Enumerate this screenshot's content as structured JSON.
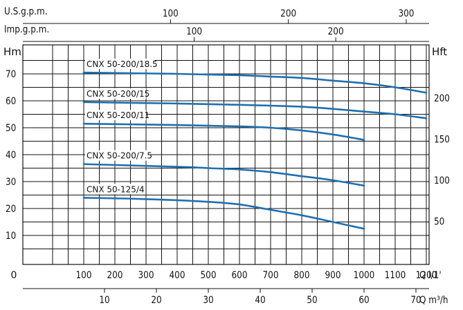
{
  "chart_data": {
    "type": "line",
    "title": "",
    "top_axes": [
      {
        "unit": "U.S.g.p.m.",
        "ticks": [
          100,
          200,
          300
        ],
        "gal_per_unit": 3.785
      },
      {
        "unit": "Imp.g.p.m.",
        "ticks": [
          100,
          200
        ],
        "gal_per_unit": 4.546
      }
    ],
    "x_axis": {
      "unit": "Q l/1'",
      "origin_label": "0",
      "ticks": [
        100,
        200,
        300,
        400,
        500,
        600,
        700,
        800,
        900,
        1000,
        1100,
        1200
      ],
      "xlim": [
        0,
        1250
      ]
    },
    "x2_axis": {
      "unit": "Q m³/h",
      "ticks": [
        10,
        20,
        30,
        40,
        50,
        60,
        70
      ]
    },
    "y_axis": {
      "unit": "Hm",
      "ticks": [
        10,
        20,
        30,
        40,
        50,
        60,
        70
      ],
      "ylim": [
        0,
        75
      ]
    },
    "y2_axis": {
      "unit": "Hft",
      "ticks": [
        50,
        100,
        150,
        200
      ]
    },
    "grid": true,
    "series": [
      {
        "name": "CNX 50-200/18.5",
        "x": [
          100,
          400,
          600,
          700,
          800,
          900,
          1000,
          1100,
          1200
        ],
        "y": [
          70.5,
          70.0,
          69.5,
          69.0,
          68.5,
          67.5,
          66.5,
          65.0,
          63.0
        ]
      },
      {
        "name": "CNX 50-200/15",
        "x": [
          100,
          400,
          600,
          700,
          800,
          900,
          1000,
          1100,
          1200
        ],
        "y": [
          59.5,
          59.0,
          58.5,
          58.2,
          57.8,
          57.0,
          56.0,
          55.0,
          53.5
        ]
      },
      {
        "name": "CNX 50-200/11",
        "x": [
          100,
          400,
          600,
          700,
          800,
          900,
          1000
        ],
        "y": [
          51.5,
          51.0,
          50.5,
          50.0,
          49.0,
          47.5,
          45.5
        ]
      },
      {
        "name": "CNX 50-200/7.5",
        "x": [
          100,
          400,
          500,
          600,
          700,
          800,
          900,
          1000
        ],
        "y": [
          36.5,
          35.5,
          35.0,
          34.5,
          33.5,
          32.0,
          30.5,
          28.5
        ]
      },
      {
        "name": "CNX 50-125/4",
        "x": [
          100,
          300,
          500,
          600,
          700,
          800,
          900,
          1000
        ],
        "y": [
          24.0,
          23.5,
          22.5,
          21.5,
          19.5,
          17.5,
          15.0,
          12.5
        ]
      }
    ]
  }
}
